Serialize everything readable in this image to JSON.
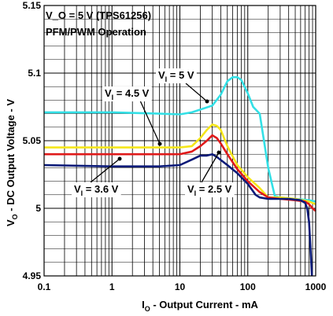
{
  "chart_data": {
    "type": "line",
    "title_lines": [
      "V_O = 5 V (TPS61256)",
      "PFM/PWM Operation"
    ],
    "xlabel": {
      "main": "I",
      "sub": "O",
      "rest": " - Output Current - mA"
    },
    "ylabel": {
      "main": "V",
      "sub": "O",
      "rest": " - DC Output Voltage - V"
    },
    "xscale": "log",
    "xlim": [
      0.1,
      1000
    ],
    "ylim": [
      4.95,
      5.15
    ],
    "grid": true,
    "x_ticks": [
      {
        "value": 0.1,
        "label": "0.1"
      },
      {
        "value": 1,
        "label": "1"
      },
      {
        "value": 10,
        "label": "10"
      },
      {
        "value": 100,
        "label": "100"
      },
      {
        "value": 1000,
        "label": "1000"
      }
    ],
    "y_ticks": [
      {
        "value": 4.95,
        "label": "4.95"
      },
      {
        "value": 5.0,
        "label": "5"
      },
      {
        "value": 5.05,
        "label": "5.05"
      },
      {
        "value": 5.1,
        "label": "5.1"
      },
      {
        "value": 5.15,
        "label": "5.15"
      }
    ],
    "series": [
      {
        "name": "V_I = 5 V",
        "color": "#33e0e6",
        "points": [
          [
            0.1,
            5.071
          ],
          [
            1,
            5.071
          ],
          [
            5,
            5.07
          ],
          [
            10,
            5.0695
          ],
          [
            15,
            5.071
          ],
          [
            20,
            5.073
          ],
          [
            30,
            5.076
          ],
          [
            40,
            5.084
          ],
          [
            50,
            5.094
          ],
          [
            60,
            5.097
          ],
          [
            70,
            5.097
          ],
          [
            80,
            5.095
          ],
          [
            100,
            5.085
          ],
          [
            120,
            5.075
          ],
          [
            150,
            5.07
          ],
          [
            200,
            5.03
          ],
          [
            250,
            5.009
          ],
          [
            300,
            5.008
          ],
          [
            500,
            5.007
          ],
          [
            800,
            5.006
          ],
          [
            1000,
            5.005
          ]
        ]
      },
      {
        "name": "V_I = 4.5 V",
        "color": "#f5e61a",
        "points": [
          [
            0.1,
            5.045
          ],
          [
            1,
            5.045
          ],
          [
            5,
            5.045
          ],
          [
            10,
            5.045
          ],
          [
            15,
            5.046
          ],
          [
            20,
            5.052
          ],
          [
            25,
            5.058
          ],
          [
            30,
            5.062
          ],
          [
            35,
            5.061
          ],
          [
            40,
            5.058
          ],
          [
            50,
            5.046
          ],
          [
            70,
            5.032
          ],
          [
            100,
            5.023
          ],
          [
            150,
            5.015
          ],
          [
            200,
            5.008
          ],
          [
            300,
            5.008
          ],
          [
            500,
            5.007
          ],
          [
            800,
            5.005
          ],
          [
            1000,
            5.003
          ]
        ]
      },
      {
        "name": "V_I = 3.6 V",
        "color": "#e01a1a",
        "points": [
          [
            0.1,
            5.04
          ],
          [
            1,
            5.04
          ],
          [
            5,
            5.04
          ],
          [
            10,
            5.04
          ],
          [
            15,
            5.042
          ],
          [
            20,
            5.046
          ],
          [
            25,
            5.05
          ],
          [
            30,
            5.054
          ],
          [
            35,
            5.052
          ],
          [
            40,
            5.048
          ],
          [
            50,
            5.04
          ],
          [
            70,
            5.029
          ],
          [
            100,
            5.02
          ],
          [
            150,
            5.012
          ],
          [
            200,
            5.008
          ],
          [
            300,
            5.007
          ],
          [
            500,
            5.006
          ],
          [
            700,
            5.005
          ],
          [
            800,
            5.003
          ],
          [
            900,
            5.0
          ],
          [
            1000,
            4.998
          ]
        ]
      },
      {
        "name": "V_I = 2.5 V",
        "color": "#0a1a78",
        "points": [
          [
            0.1,
            5.032
          ],
          [
            1,
            5.031
          ],
          [
            3,
            5.031
          ],
          [
            5,
            5.031
          ],
          [
            10,
            5.032
          ],
          [
            15,
            5.036
          ],
          [
            20,
            5.039
          ],
          [
            25,
            5.039
          ],
          [
            30,
            5.04
          ],
          [
            35,
            5.038
          ],
          [
            50,
            5.032
          ],
          [
            70,
            5.026
          ],
          [
            100,
            5.018
          ],
          [
            130,
            5.01
          ],
          [
            150,
            5.008
          ],
          [
            200,
            5.007
          ],
          [
            400,
            5.007
          ],
          [
            600,
            5.006
          ],
          [
            700,
            5.004
          ],
          [
            750,
            5.0
          ],
          [
            800,
            4.99
          ],
          [
            850,
            4.965
          ],
          [
            880,
            4.95
          ]
        ]
      }
    ],
    "callouts": [
      {
        "main": "V",
        "sub": "I",
        "rest": " = 5 V"
      },
      {
        "main": "V",
        "sub": "I",
        "rest": " = 4.5 V"
      },
      {
        "main": "V",
        "sub": "I",
        "rest": " = 3.6 V"
      },
      {
        "main": "V",
        "sub": "I",
        "rest": " = 2.5 V"
      }
    ]
  }
}
